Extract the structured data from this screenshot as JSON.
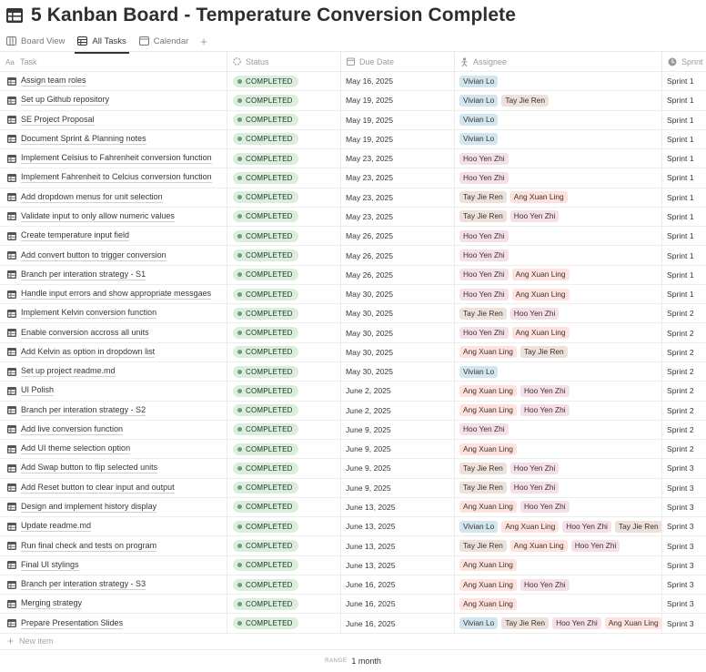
{
  "page": {
    "title": "5 Kanban Board - Temperature Conversion Complete",
    "icon": "table-icon"
  },
  "tabs": [
    {
      "label": "Board View",
      "icon": "board-icon",
      "active": false
    },
    {
      "label": "All Tasks",
      "icon": "table-icon",
      "active": true
    },
    {
      "label": "Calendar",
      "icon": "calendar-icon",
      "active": false
    }
  ],
  "columns": {
    "task": "Task",
    "status": "Status",
    "due": "Due Date",
    "assignee": "Assignee",
    "sprint": "Sprint"
  },
  "tag_colors": {
    "Vivian Lo": "#d3e5ef",
    "Tay Jie Ren": "#eee0da",
    "Hoo Yen Zhi": "#f5e0e9",
    "Ang Xuan Ling": "#ffe2dd"
  },
  "status_colors": {
    "COMPLETED": "#dbeddb"
  },
  "rows": [
    {
      "task": "Assign team roles",
      "status": "COMPLETED",
      "due": "May 16, 2025",
      "assignees": [
        "Vivian Lo"
      ],
      "sprint": "Sprint 1"
    },
    {
      "task": "Set up Github repository",
      "status": "COMPLETED",
      "due": "May 19, 2025",
      "assignees": [
        "Vivian Lo",
        "Tay Jie Ren"
      ],
      "sprint": "Sprint 1"
    },
    {
      "task": "SE Project Proposal",
      "status": "COMPLETED",
      "due": "May 19, 2025",
      "assignees": [
        "Vivian Lo"
      ],
      "sprint": "Sprint 1"
    },
    {
      "task": "Document Sprint & Planning notes",
      "status": "COMPLETED",
      "due": "May 19, 2025",
      "assignees": [
        "Vivian Lo"
      ],
      "sprint": "Sprint 1"
    },
    {
      "task": "Implement Celsius to Fahrenheit conversion function",
      "status": "COMPLETED",
      "due": "May 23, 2025",
      "assignees": [
        "Hoo Yen Zhi"
      ],
      "sprint": "Sprint 1"
    },
    {
      "task": "Implement Fahrenheit to Celcius conversion function",
      "status": "COMPLETED",
      "due": "May 23, 2025",
      "assignees": [
        "Hoo Yen Zhi"
      ],
      "sprint": "Sprint 1"
    },
    {
      "task": "Add dropdown menus for unit selection",
      "status": "COMPLETED",
      "due": "May 23, 2025",
      "assignees": [
        "Tay Jie Ren",
        "Ang Xuan Ling"
      ],
      "sprint": "Sprint 1"
    },
    {
      "task": "Validate input to only allow numeric values",
      "status": "COMPLETED",
      "due": "May 23, 2025",
      "assignees": [
        "Tay Jie Ren",
        "Hoo Yen Zhi"
      ],
      "sprint": "Sprint 1"
    },
    {
      "task": "Create temperature input field",
      "status": "COMPLETED",
      "due": "May 26, 2025",
      "assignees": [
        "Hoo Yen Zhi"
      ],
      "sprint": "Sprint 1"
    },
    {
      "task": "Add convert button to trigger conversion",
      "status": "COMPLETED",
      "due": "May 26, 2025",
      "assignees": [
        "Hoo Yen Zhi"
      ],
      "sprint": "Sprint 1"
    },
    {
      "task": "Branch per interation strategy - S1",
      "status": "COMPLETED",
      "due": "May 26, 2025",
      "assignees": [
        "Hoo Yen Zhi",
        "Ang Xuan Ling"
      ],
      "sprint": "Sprint 1"
    },
    {
      "task": "Handle input errors and show appropriate messgaes",
      "status": "COMPLETED",
      "due": "May 30, 2025",
      "assignees": [
        "Hoo Yen Zhi",
        "Ang Xuan Ling"
      ],
      "sprint": "Sprint 1"
    },
    {
      "task": "Implement Kelvin conversion function",
      "status": "COMPLETED",
      "due": "May 30, 2025",
      "assignees": [
        "Tay Jie Ren",
        "Hoo Yen Zhi"
      ],
      "sprint": "Sprint 2"
    },
    {
      "task": "Enable conversion accross all units",
      "status": "COMPLETED",
      "due": "May 30, 2025",
      "assignees": [
        "Hoo Yen Zhi",
        "Ang Xuan Ling"
      ],
      "sprint": "Sprint 2"
    },
    {
      "task": "Add Kelvin as option in dropdown list",
      "status": "COMPLETED",
      "due": "May 30, 2025",
      "assignees": [
        "Ang Xuan Ling",
        "Tay Jie Ren"
      ],
      "sprint": "Sprint 2"
    },
    {
      "task": "Set up project readme.md",
      "status": "COMPLETED",
      "due": "May 30, 2025",
      "assignees": [
        "Vivian Lo"
      ],
      "sprint": "Sprint 2"
    },
    {
      "task": "UI Polish",
      "status": "COMPLETED",
      "due": "June 2, 2025",
      "assignees": [
        "Ang Xuan Ling",
        "Hoo Yen Zhi"
      ],
      "sprint": "Sprint 2"
    },
    {
      "task": "Branch per interation strategy - S2",
      "status": "COMPLETED",
      "due": "June 2, 2025",
      "assignees": [
        "Ang Xuan Ling",
        "Hoo Yen Zhi"
      ],
      "sprint": "Sprint 2"
    },
    {
      "task": "Add live conversion function",
      "status": "COMPLETED",
      "due": "June 9, 2025",
      "assignees": [
        "Hoo Yen Zhi"
      ],
      "sprint": "Sprint 2"
    },
    {
      "task": "Add UI theme selection option",
      "status": "COMPLETED",
      "due": "June 9, 2025",
      "assignees": [
        "Ang Xuan Ling"
      ],
      "sprint": "Sprint 2"
    },
    {
      "task": "Add Swap button to flip selected units",
      "status": "COMPLETED",
      "due": "June 9, 2025",
      "assignees": [
        "Tay Jie Ren",
        "Hoo Yen Zhi"
      ],
      "sprint": "Sprint 3"
    },
    {
      "task": "Add Reset button to clear input and output",
      "status": "COMPLETED",
      "due": "June 9, 2025",
      "assignees": [
        "Tay Jie Ren",
        "Hoo Yen Zhi"
      ],
      "sprint": "Sprint 3"
    },
    {
      "task": "Design and implement history display",
      "status": "COMPLETED",
      "due": "June 13, 2025",
      "assignees": [
        "Ang Xuan Ling",
        "Hoo Yen Zhi"
      ],
      "sprint": "Sprint 3"
    },
    {
      "task": "Update readme.md",
      "status": "COMPLETED",
      "due": "June 13, 2025",
      "assignees": [
        "Vivian Lo",
        "Ang Xuan Ling",
        "Hoo Yen Zhi",
        "Tay Jie Ren"
      ],
      "sprint": "Sprint 3"
    },
    {
      "task": "Run final check and tests on program",
      "status": "COMPLETED",
      "due": "June 13, 2025",
      "assignees": [
        "Tay Jie Ren",
        "Ang Xuan Ling",
        "Hoo Yen Zhi"
      ],
      "sprint": "Sprint 3"
    },
    {
      "task": "Final UI stylings",
      "status": "COMPLETED",
      "due": "June 13, 2025",
      "assignees": [
        "Ang Xuan Ling"
      ],
      "sprint": "Sprint 3"
    },
    {
      "task": "Branch per interation strategy - S3",
      "status": "COMPLETED",
      "due": "June 16, 2025",
      "assignees": [
        "Ang Xuan Ling",
        "Hoo Yen Zhi"
      ],
      "sprint": "Sprint 3"
    },
    {
      "task": "Merging strategy",
      "status": "COMPLETED",
      "due": "June 16, 2025",
      "assignees": [
        "Ang Xuan Ling"
      ],
      "sprint": "Sprint 3"
    },
    {
      "task": "Prepare Presentation Slides",
      "status": "COMPLETED",
      "due": "June 16, 2025",
      "assignees": [
        "Vivian Lo",
        "Tay Jie Ren",
        "Hoo Yen Zhi",
        "Ang Xuan Ling"
      ],
      "sprint": "Sprint 3"
    }
  ],
  "new_item": "New item",
  "footer": {
    "range_label": "RANGE",
    "range_value": "1 month"
  }
}
